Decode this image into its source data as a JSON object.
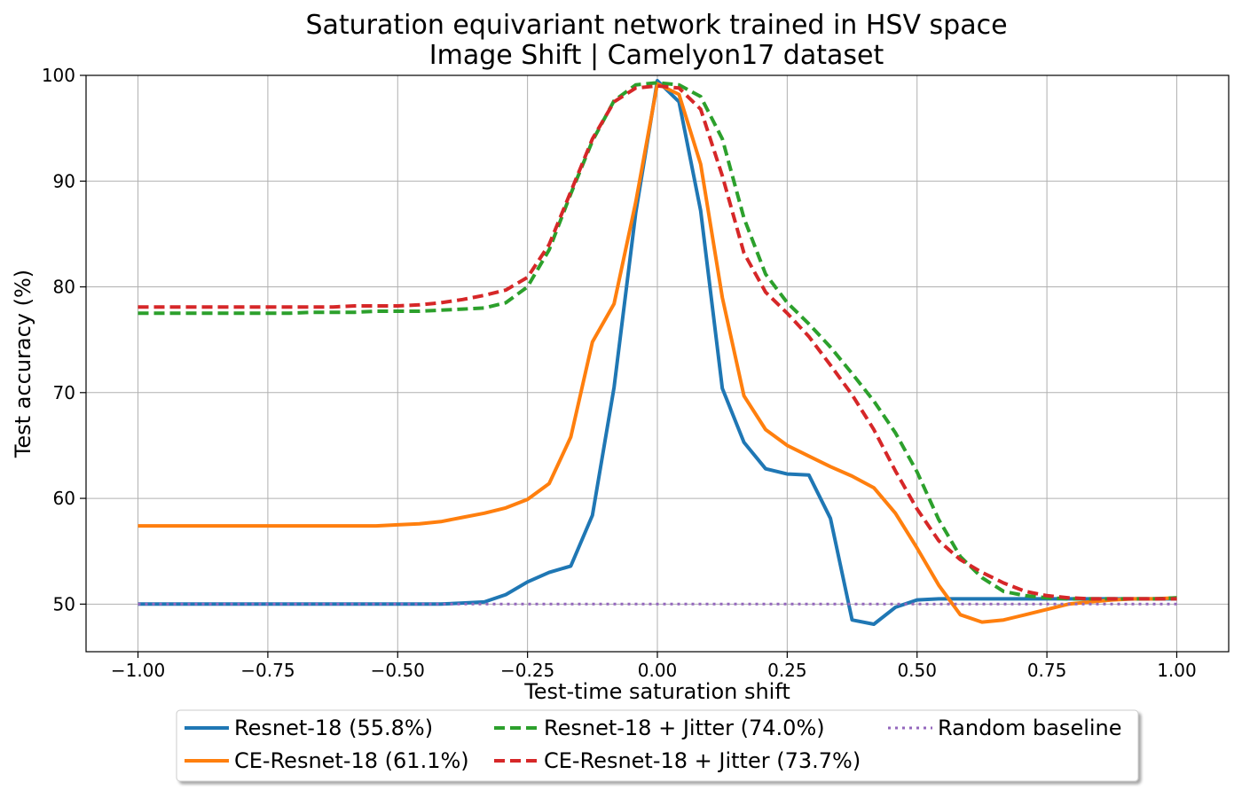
{
  "chart_data": {
    "type": "line",
    "title_line1": "Saturation equivariant network trained in HSV space",
    "title_line2": "Image Shift | Camelyon17 dataset",
    "xlabel": "Test-time saturation shift",
    "ylabel": "Test accuracy (%)",
    "xlim": [
      -1.1,
      1.1
    ],
    "ylim": [
      45.5,
      100
    ],
    "x_ticks": [
      -1.0,
      -0.75,
      -0.5,
      -0.25,
      0.0,
      0.25,
      0.5,
      0.75,
      1.0
    ],
    "x_tick_labels": [
      "−1.00",
      "−0.75",
      "−0.50",
      "−0.25",
      "0.00",
      "0.25",
      "0.50",
      "0.75",
      "1.00"
    ],
    "y_ticks": [
      50,
      60,
      70,
      80,
      90,
      100
    ],
    "y_tick_labels": [
      "50",
      "60",
      "70",
      "80",
      "90",
      "100"
    ],
    "grid": true,
    "legend_position": "bottom-center",
    "x": [
      -1.0,
      -0.9583,
      -0.9167,
      -0.875,
      -0.8333,
      -0.7917,
      -0.75,
      -0.7083,
      -0.6667,
      -0.625,
      -0.5833,
      -0.5417,
      -0.5,
      -0.4583,
      -0.4167,
      -0.375,
      -0.3333,
      -0.2917,
      -0.25,
      -0.2083,
      -0.1667,
      -0.125,
      -0.0833,
      -0.0417,
      0.0,
      0.0417,
      0.0833,
      0.125,
      0.1667,
      0.2083,
      0.25,
      0.2917,
      0.3333,
      0.375,
      0.4167,
      0.4583,
      0.5,
      0.5417,
      0.5833,
      0.625,
      0.6667,
      0.7083,
      0.75,
      0.7917,
      0.8333,
      0.875,
      0.9167,
      0.9583,
      1.0
    ],
    "series": [
      {
        "name": "Resnet-18 (55.8%)",
        "color": "#1f77b4",
        "dash": "solid",
        "values": [
          50.0,
          50.0,
          50.0,
          50.0,
          50.0,
          50.0,
          50.0,
          50.0,
          50.0,
          50.0,
          50.0,
          50.0,
          50.0,
          50.0,
          50.0,
          50.1,
          50.2,
          50.9,
          52.1,
          53.0,
          53.6,
          58.4,
          70.5,
          87.0,
          99.5,
          97.5,
          87.2,
          70.4,
          65.3,
          62.8,
          62.3,
          62.2,
          58.1,
          48.5,
          48.1,
          49.7,
          50.4,
          50.5,
          50.5,
          50.5,
          50.5,
          50.5,
          50.5,
          50.5,
          50.5,
          50.5,
          50.5,
          50.5,
          50.5
        ]
      },
      {
        "name": "CE-Resnet-18 (61.1%)",
        "color": "#ff7f0e",
        "dash": "solid",
        "values": [
          57.4,
          57.4,
          57.4,
          57.4,
          57.4,
          57.4,
          57.4,
          57.4,
          57.4,
          57.4,
          57.4,
          57.4,
          57.5,
          57.6,
          57.8,
          58.2,
          58.6,
          59.1,
          59.9,
          61.4,
          65.8,
          74.8,
          78.4,
          88.0,
          99.2,
          98.2,
          91.6,
          79.0,
          69.7,
          66.5,
          65.0,
          64.0,
          63.0,
          62.1,
          61.0,
          58.6,
          55.3,
          51.8,
          49.0,
          48.3,
          48.5,
          49.0,
          49.5,
          50.0,
          50.2,
          50.4,
          50.5,
          50.5,
          50.6
        ]
      },
      {
        "name": "Resnet-18 + Jitter (74.0%)",
        "color": "#2ca02c",
        "dash": "dashed",
        "values": [
          77.5,
          77.5,
          77.5,
          77.5,
          77.5,
          77.5,
          77.5,
          77.5,
          77.6,
          77.6,
          77.6,
          77.7,
          77.7,
          77.7,
          77.8,
          77.9,
          78.0,
          78.5,
          80.0,
          83.5,
          88.8,
          93.8,
          97.6,
          99.1,
          99.3,
          99.1,
          98.0,
          94.0,
          86.5,
          81.2,
          78.5,
          76.5,
          74.3,
          71.8,
          69.2,
          66.2,
          62.5,
          58.0,
          54.5,
          52.5,
          51.2,
          50.8,
          50.6,
          50.5,
          50.5,
          50.5,
          50.5,
          50.5,
          50.6
        ]
      },
      {
        "name": "CE-Resnet-18 + Jitter (73.7%)",
        "color": "#d62728",
        "dash": "dashed",
        "values": [
          78.1,
          78.1,
          78.1,
          78.1,
          78.1,
          78.1,
          78.1,
          78.1,
          78.1,
          78.1,
          78.2,
          78.2,
          78.2,
          78.3,
          78.5,
          78.8,
          79.2,
          79.7,
          80.9,
          84.0,
          89.0,
          94.0,
          97.5,
          98.8,
          99.0,
          98.8,
          96.8,
          90.5,
          83.2,
          79.5,
          77.5,
          75.3,
          72.6,
          69.8,
          66.5,
          62.6,
          59.0,
          56.0,
          54.2,
          53.0,
          52.0,
          51.2,
          50.8,
          50.6,
          50.5,
          50.5,
          50.5,
          50.5,
          50.5
        ]
      },
      {
        "name": "Random baseline",
        "color": "#9467bd",
        "dash": "dotted",
        "values": [
          50.0,
          50.0,
          50.0,
          50.0,
          50.0,
          50.0,
          50.0,
          50.0,
          50.0,
          50.0,
          50.0,
          50.0,
          50.0,
          50.0,
          50.0,
          50.0,
          50.0,
          50.0,
          50.0,
          50.0,
          50.0,
          50.0,
          50.0,
          50.0,
          50.0,
          50.0,
          50.0,
          50.0,
          50.0,
          50.0,
          50.0,
          50.0,
          50.0,
          50.0,
          50.0,
          50.0,
          50.0,
          50.0,
          50.0,
          50.0,
          50.0,
          50.0,
          50.0,
          50.0,
          50.0,
          50.0,
          50.0,
          50.0,
          50.0
        ]
      }
    ]
  }
}
